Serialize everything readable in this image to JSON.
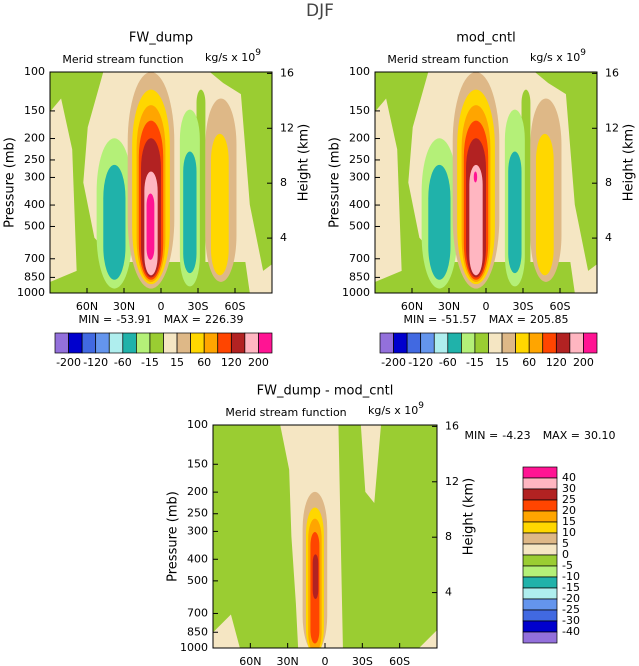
{
  "title": "DJF",
  "chart_data": [
    {
      "type": "contour",
      "title": "FW_dump",
      "subtitle": "Merid stream function",
      "units": "kg/s x 10",
      "units_exponent": 9,
      "ylabel": "Pressure (mb)",
      "y2label": "Height (km)",
      "log_y": true,
      "ylim": [
        1000,
        100
      ],
      "yticks": [
        100,
        150,
        200,
        250,
        300,
        400,
        500,
        700,
        850,
        1000
      ],
      "y2lim": [
        0,
        16.1
      ],
      "y2ticks": [
        4,
        8,
        12,
        16
      ],
      "xlim": [
        90,
        -90
      ],
      "xticks": [
        {
          "value": 60,
          "label": "60N"
        },
        {
          "value": 30,
          "label": "30N"
        },
        0,
        {
          "value": -30,
          "label": "30S"
        },
        {
          "value": -60,
          "label": "60S"
        }
      ],
      "min_label": "MIN =",
      "min": -53.91,
      "max_label": "MAX =",
      "max": 226.39,
      "colorbar": {
        "orientation": "horizontal",
        "colors": [
          "#9370db",
          "#0000cd",
          "#4169e1",
          "#6495ed",
          "#afeeee",
          "#20b2aa",
          "#b4f078",
          "#9acd32",
          "#f5e6c3",
          "#deb887",
          "#ffd700",
          "#ffa500",
          "#ff4500",
          "#b22222",
          "#ffb6c1",
          "#ff1493"
        ],
        "levels": [
          -200,
          null,
          -120,
          null,
          -60,
          null,
          -15,
          null,
          15,
          null,
          60,
          null,
          120,
          null,
          200
        ]
      }
    },
    {
      "type": "contour",
      "title": "mod_cntl",
      "subtitle": "Merid stream function",
      "units": "kg/s x 10",
      "units_exponent": 9,
      "ylabel": "Pressure (mb)",
      "y2label": "Height (km)",
      "log_y": true,
      "ylim": [
        1000,
        100
      ],
      "yticks": [
        100,
        150,
        200,
        250,
        300,
        400,
        500,
        700,
        850,
        1000
      ],
      "y2lim": [
        0,
        16.1
      ],
      "y2ticks": [
        4,
        8,
        12,
        16
      ],
      "xlim": [
        90,
        -90
      ],
      "xticks": [
        {
          "value": 60,
          "label": "60N"
        },
        {
          "value": 30,
          "label": "30N"
        },
        0,
        {
          "value": -30,
          "label": "30S"
        },
        {
          "value": -60,
          "label": "60S"
        }
      ],
      "min_label": "MIN =",
      "min": -51.57,
      "max_label": "MAX =",
      "max": 205.85,
      "colorbar": {
        "orientation": "horizontal",
        "colors": [
          "#9370db",
          "#0000cd",
          "#4169e1",
          "#6495ed",
          "#afeeee",
          "#20b2aa",
          "#b4f078",
          "#9acd32",
          "#f5e6c3",
          "#deb887",
          "#ffd700",
          "#ffa500",
          "#ff4500",
          "#b22222",
          "#ffb6c1",
          "#ff1493"
        ],
        "levels": [
          -200,
          null,
          -120,
          null,
          -60,
          null,
          -15,
          null,
          15,
          null,
          60,
          null,
          120,
          null,
          200
        ]
      }
    },
    {
      "type": "contour",
      "title": "FW_dump - mod_cntl",
      "subtitle": "Merid stream function",
      "units": "kg/s x 10",
      "units_exponent": 9,
      "ylabel": "Pressure (mb)",
      "y2label": "Height (km)",
      "log_y": true,
      "ylim": [
        1000,
        100
      ],
      "yticks": [
        100,
        150,
        200,
        250,
        300,
        400,
        500,
        700,
        850,
        1000
      ],
      "y2lim": [
        0,
        16.1
      ],
      "y2ticks": [
        4,
        8,
        12,
        16
      ],
      "xlim": [
        90,
        -90
      ],
      "xticks": [
        {
          "value": 60,
          "label": "60N"
        },
        {
          "value": 30,
          "label": "30N"
        },
        0,
        {
          "value": -30,
          "label": "30S"
        },
        {
          "value": -60,
          "label": "60S"
        }
      ],
      "min_label": "MIN =",
      "min": -4.23,
      "max_label": "MAX =",
      "max": {
        "value": 30.1,
        "label": "30.10"
      },
      "colorbar": {
        "orientation": "vertical",
        "colors": [
          "#ff1493",
          "#ffb6c1",
          "#b22222",
          "#ff4500",
          "#ffa500",
          "#ffd700",
          "#deb887",
          "#f5e6c3",
          "#9acd32",
          "#b4f078",
          "#20b2aa",
          "#afeeee",
          "#6495ed",
          "#4169e1",
          "#0000cd",
          "#9370db"
        ],
        "levels": [
          40,
          30,
          25,
          20,
          15,
          10,
          5,
          0,
          -5,
          -10,
          -15,
          -20,
          -25,
          -30,
          -40
        ]
      }
    }
  ]
}
